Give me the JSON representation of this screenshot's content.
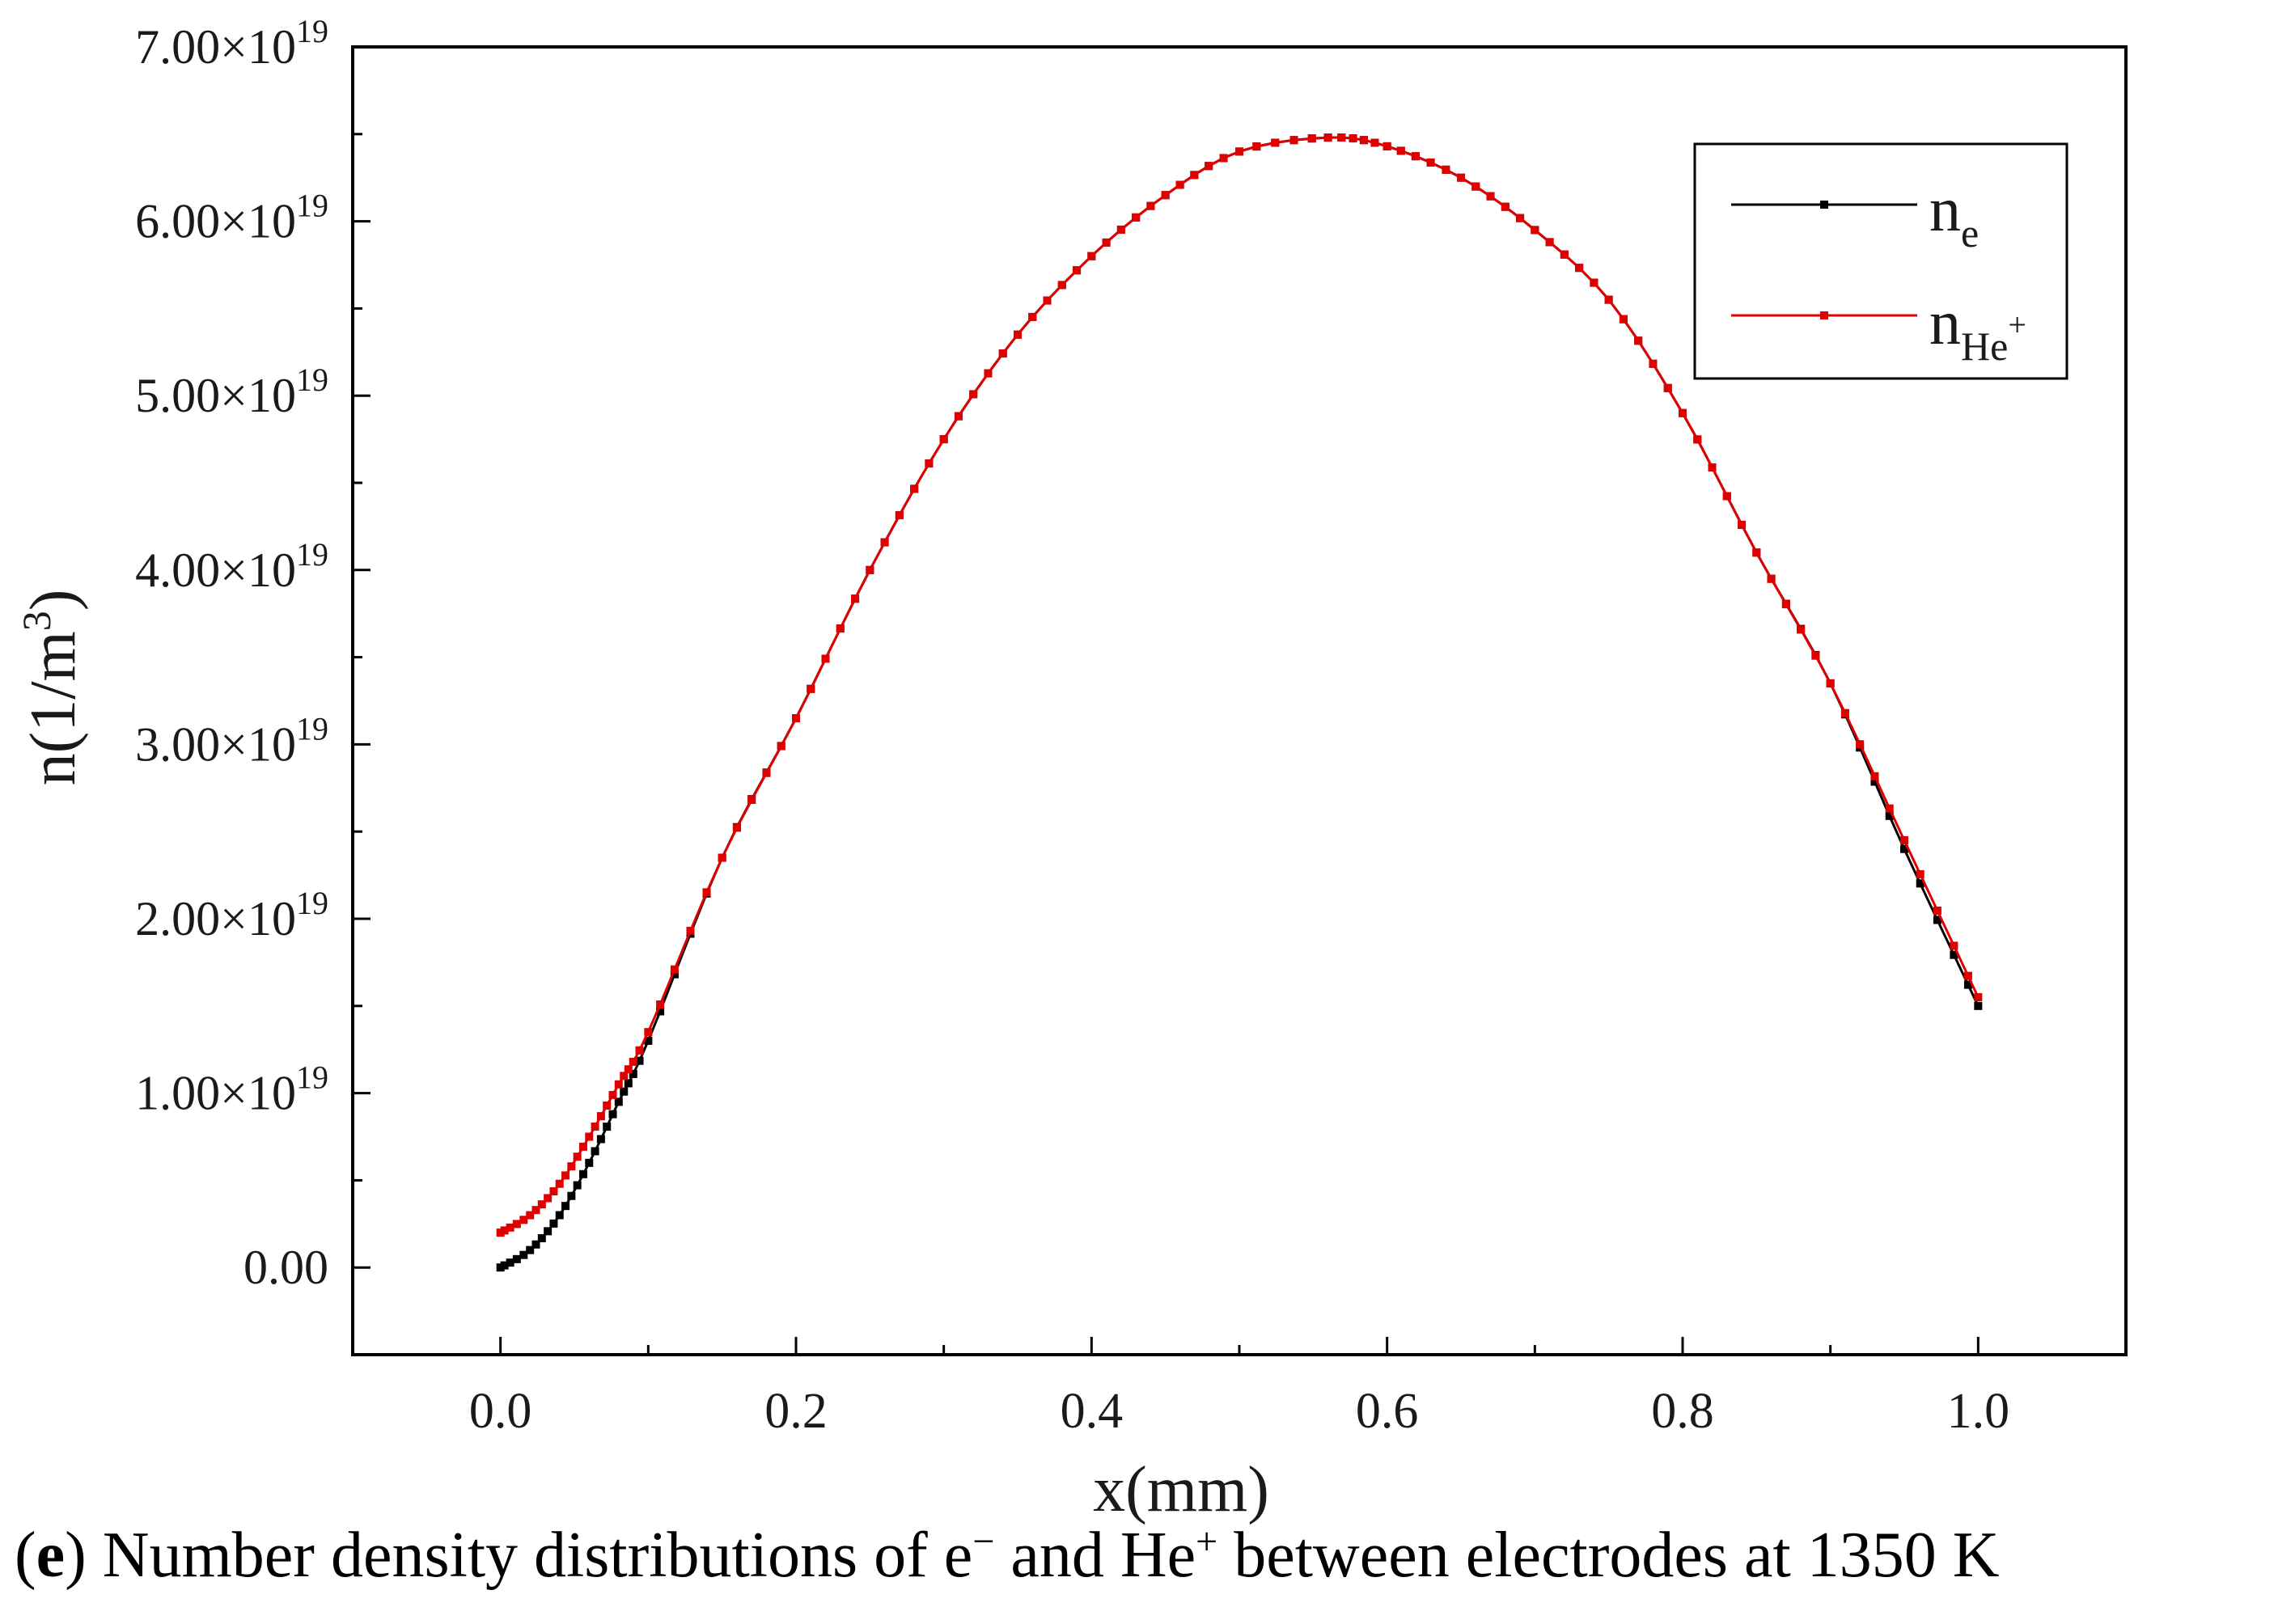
{
  "chart_data": {
    "type": "line",
    "xlabel": "x(mm)",
    "ylabel_main": "n(1/m",
    "ylabel_sup": "3",
    "ylabel_close": ")",
    "xlim": [
      -0.1,
      1.1
    ],
    "ylim": [
      -5e+18,
      7e+19
    ],
    "x_ticks": [
      {
        "value": 0.0,
        "label": "0.0"
      },
      {
        "value": 0.2,
        "label": "0.2"
      },
      {
        "value": 0.4,
        "label": "0.4"
      },
      {
        "value": 0.6,
        "label": "0.6"
      },
      {
        "value": 0.8,
        "label": "0.8"
      },
      {
        "value": 1.0,
        "label": "1.0"
      }
    ],
    "y_ticks": [
      {
        "value": 0,
        "mantissa": "0.00",
        "exp": ""
      },
      {
        "value": 1e+19,
        "mantissa": "1.00×10",
        "exp": "19"
      },
      {
        "value": 2e+19,
        "mantissa": "2.00×10",
        "exp": "19"
      },
      {
        "value": 3e+19,
        "mantissa": "3.00×10",
        "exp": "19"
      },
      {
        "value": 4e+19,
        "mantissa": "4.00×10",
        "exp": "19"
      },
      {
        "value": 5e+19,
        "mantissa": "5.00×10",
        "exp": "19"
      },
      {
        "value": 6e+19,
        "mantissa": "6.00×10",
        "exp": "19"
      },
      {
        "value": 7e+19,
        "mantissa": "7.00×10",
        "exp": "19"
      }
    ],
    "legend_position": "top-right",
    "series": [
      {
        "name": "ne",
        "label_main": "n",
        "label_sub": "e",
        "label_sup": "",
        "color": "#000000",
        "x": [
          0.0,
          0.02,
          0.04,
          0.06,
          0.08,
          0.1,
          0.15,
          0.2,
          0.25,
          0.3,
          0.35,
          0.4,
          0.45,
          0.5,
          0.56,
          0.6,
          0.65,
          0.7,
          0.75,
          0.8,
          0.85,
          0.9,
          0.95,
          1.0
        ],
        "values": [
          0.0,
          1e+18,
          3e+18,
          6e+18,
          9.5e+18,
          1.3e+19,
          2.35e+19,
          3.15e+19,
          4e+19,
          4.75e+19,
          5.35e+19,
          5.8e+19,
          6.15e+19,
          6.4e+19,
          6.48e+19,
          6.43e+19,
          6.25e+19,
          5.95e+19,
          5.55e+19,
          4.9e+19,
          4.1e+19,
          3.35e+19,
          2.4e+19,
          1.5e+19
        ]
      },
      {
        "name": "nHe+",
        "label_main": "n",
        "label_sub": "He",
        "label_sup": "+",
        "color": "#e00000",
        "x": [
          0.0,
          0.02,
          0.04,
          0.06,
          0.08,
          0.1,
          0.15,
          0.2,
          0.25,
          0.3,
          0.35,
          0.4,
          0.45,
          0.5,
          0.56,
          0.6,
          0.65,
          0.7,
          0.75,
          0.8,
          0.85,
          0.9,
          0.95,
          1.0
        ],
        "values": [
          2e+18,
          3e+18,
          4.8e+18,
          7.5e+18,
          1.05e+19,
          1.35e+19,
          2.35e+19,
          3.15e+19,
          4e+19,
          4.75e+19,
          5.35e+19,
          5.8e+19,
          6.15e+19,
          6.4e+19,
          6.48e+19,
          6.43e+19,
          6.25e+19,
          5.95e+19,
          5.55e+19,
          4.9e+19,
          4.1e+19,
          3.35e+19,
          2.45e+19,
          1.55e+19
        ]
      }
    ]
  },
  "caption": {
    "open": "(",
    "letter": "e",
    "part1": ") Number density distributions of e",
    "e_sup": "−",
    "part2": " and He",
    "he_sup": "+",
    "part3": " between electrodes at 1350 K"
  }
}
